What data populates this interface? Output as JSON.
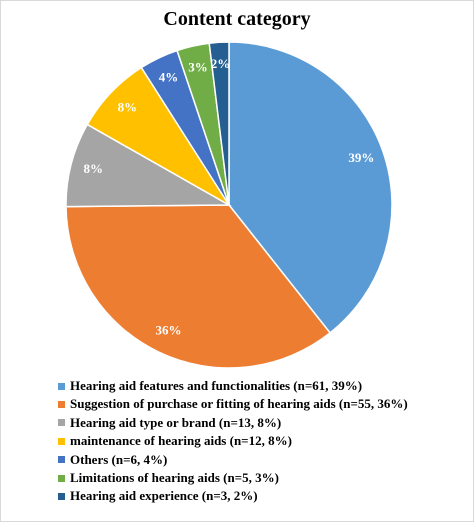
{
  "chart_data": {
    "type": "pie",
    "title": "Content category",
    "series": [
      {
        "name": "Hearing aid features and functionalities (n=61, 39%)",
        "value": 61,
        "label": "39%",
        "color": "#5B9BD5"
      },
      {
        "name": "Suggestion of purchase or fitting of hearing aids (n=55, 36%)",
        "value": 55,
        "label": "36%",
        "color": "#ED7D31"
      },
      {
        "name": "Hearing aid type or brand (n=13, 8%)",
        "value": 13,
        "label": "8%",
        "color": "#A5A5A5"
      },
      {
        "name": "maintenance of hearing aids (n=12, 8%)",
        "value": 12,
        "label": "8%",
        "color": "#FFC000"
      },
      {
        "name": "Others (n=6, 4%)",
        "value": 6,
        "label": "4%",
        "color": "#4472C4"
      },
      {
        "name": "Limitations of hearing aids (n=5, 3%)",
        "value": 5,
        "label": "3%",
        "color": "#70AD47"
      },
      {
        "name": "Hearing aid experience (n=3, 2%)",
        "value": 3,
        "label": "2%",
        "color": "#255E91"
      }
    ],
    "start_angle": "12 o'clock",
    "direction": "clockwise",
    "legend_position": "bottom-left"
  }
}
